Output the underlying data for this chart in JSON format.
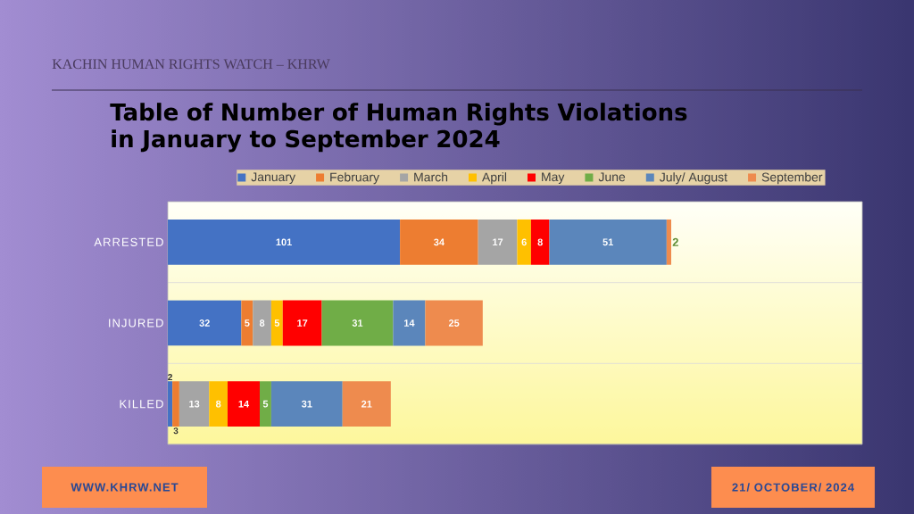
{
  "chart_data": {
    "type": "bar",
    "orientation": "horizontal",
    "stacked": true,
    "title": "Table of Number of Human Rights Violations in January to September 2024",
    "categories": [
      "ARRESTED",
      "INJURED",
      "KILLED"
    ],
    "series": [
      {
        "name": "January",
        "color": "#4472c4",
        "values": [
          101,
          32,
          2
        ]
      },
      {
        "name": "February",
        "color": "#ed7d31",
        "values": [
          34,
          5,
          3
        ]
      },
      {
        "name": "March",
        "color": "#a5a5a5",
        "values": [
          17,
          8,
          13
        ]
      },
      {
        "name": "April",
        "color": "#ffc000",
        "values": [
          6,
          5,
          8
        ]
      },
      {
        "name": "May",
        "color": "#ff0000",
        "values": [
          8,
          17,
          14
        ]
      },
      {
        "name": "June",
        "color": "#70ad47",
        "values": [
          null,
          31,
          5
        ]
      },
      {
        "name": "July/ August",
        "color": "#5b86bb",
        "values": [
          51,
          14,
          31
        ]
      },
      {
        "name": "September",
        "color": "#ee8b4e",
        "values": [
          2,
          25,
          21
        ]
      }
    ],
    "data_labels": true,
    "legend": "top",
    "grid": "y",
    "tick_labels": "y",
    "annotations": [
      "KACHIN HUMAN RIGHTS WATCH – KHRW",
      "WWW.KHRW.NET",
      "21/ OCTOBER/ 2024"
    ]
  }
}
